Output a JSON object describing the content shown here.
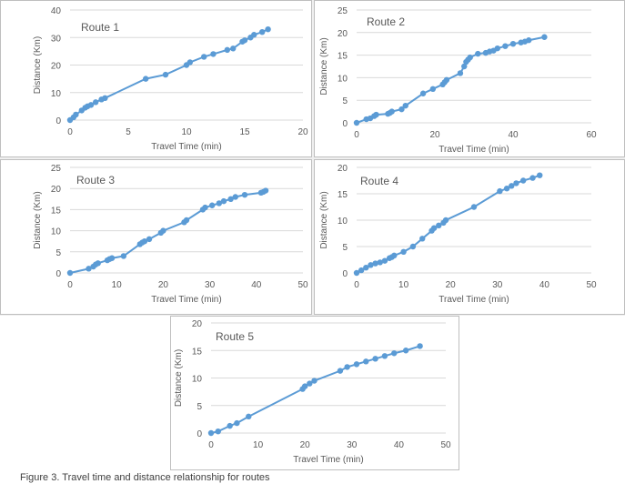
{
  "figure": {
    "caption": "Figure 3. Travel time and distance relationship for routes"
  },
  "style": {
    "series_color": "#5b9bd5",
    "grid_color": "#d9d9d9",
    "axis_text_color": "#595959"
  },
  "chart_data": [
    {
      "type": "line",
      "title": "Route 1",
      "xlabel": "Travel Time (min)",
      "ylabel": "Distance (Km)",
      "xlim": [
        0,
        20
      ],
      "ylim": [
        0,
        40
      ],
      "xticks": [
        0,
        5,
        10,
        15,
        20
      ],
      "yticks": [
        0,
        10,
        20,
        30,
        40
      ],
      "x": [
        0,
        0.3,
        0.5,
        1.0,
        1.3,
        1.5,
        1.8,
        2.2,
        2.7,
        3.0,
        6.5,
        8.2,
        10.0,
        10.3,
        11.5,
        12.3,
        13.5,
        14.0,
        14.8,
        15.0,
        15.5,
        15.8,
        16.5,
        17.0
      ],
      "y": [
        0,
        1.0,
        2.0,
        3.5,
        4.5,
        5.0,
        5.5,
        6.5,
        7.5,
        8.0,
        15.0,
        16.5,
        20.0,
        21.0,
        23.0,
        24.0,
        25.5,
        26.0,
        28.5,
        29.0,
        30.0,
        31.0,
        32.0,
        33.0
      ]
    },
    {
      "type": "line",
      "title": "Route 2",
      "xlabel": "Travel Time (min)",
      "ylabel": "Distance (Km)",
      "xlim": [
        0,
        60
      ],
      "ylim": [
        0,
        25
      ],
      "xticks": [
        0,
        20,
        40,
        60
      ],
      "yticks": [
        0,
        5,
        10,
        15,
        20,
        25
      ],
      "x": [
        0,
        2.5,
        3.5,
        4.5,
        5.0,
        8.0,
        8.5,
        9.0,
        11.5,
        12.5,
        17.0,
        19.5,
        22.0,
        22.5,
        23.0,
        26.5,
        27.5,
        28.0,
        28.5,
        29.0,
        31.0,
        33.0,
        34.0,
        35.0,
        36.0,
        38.0,
        40.0,
        42.0,
        43.0,
        44.0,
        48.0
      ],
      "y": [
        0,
        0.8,
        1.0,
        1.5,
        1.8,
        2.0,
        2.2,
        2.5,
        3.0,
        3.8,
        6.5,
        7.5,
        8.5,
        9.0,
        9.5,
        11.0,
        12.5,
        13.5,
        14.0,
        14.5,
        15.3,
        15.5,
        15.8,
        16.0,
        16.5,
        17.0,
        17.5,
        17.8,
        18.0,
        18.3,
        19.0
      ]
    },
    {
      "type": "line",
      "title": "Route 3",
      "xlabel": "Travel Time (min)",
      "ylabel": "Distance (Km)",
      "xlim": [
        0,
        50
      ],
      "ylim": [
        0,
        25
      ],
      "xticks": [
        0,
        10,
        20,
        30,
        40,
        50
      ],
      "yticks": [
        0,
        5,
        10,
        15,
        20,
        25
      ],
      "x": [
        0,
        4.0,
        5.0,
        5.5,
        6.0,
        8.0,
        8.5,
        9.0,
        11.5,
        15.0,
        15.5,
        16.0,
        17.0,
        19.5,
        20.0,
        24.5,
        25.0,
        28.5,
        29.0,
        30.5,
        32.0,
        33.0,
        34.5,
        35.5,
        37.5,
        41.0,
        41.5,
        42.0
      ],
      "y": [
        0,
        1.0,
        1.5,
        2.0,
        2.3,
        3.0,
        3.3,
        3.5,
        4.0,
        6.8,
        7.2,
        7.5,
        8.0,
        9.5,
        10.0,
        12.0,
        12.5,
        15.0,
        15.5,
        16.0,
        16.5,
        17.0,
        17.5,
        18.0,
        18.5,
        19.0,
        19.2,
        19.5
      ]
    },
    {
      "type": "line",
      "title": "Route 4",
      "xlabel": "Travel Time (min)",
      "ylabel": "Distance (Km)",
      "xlim": [
        0,
        50
      ],
      "ylim": [
        0,
        20
      ],
      "xticks": [
        0,
        10,
        20,
        30,
        40,
        50
      ],
      "yticks": [
        0,
        5,
        10,
        15,
        20
      ],
      "x": [
        0,
        1.0,
        2.0,
        3.0,
        4.0,
        5.0,
        6.0,
        7.0,
        7.5,
        8.0,
        10.0,
        12.0,
        14.0,
        16.0,
        16.5,
        17.5,
        18.5,
        19.0,
        25.0,
        30.5,
        32.0,
        33.0,
        34.0,
        35.5,
        37.5,
        39.0
      ],
      "y": [
        0,
        0.5,
        1.0,
        1.5,
        1.8,
        2.0,
        2.3,
        2.8,
        3.0,
        3.3,
        4.0,
        5.0,
        6.5,
        8.0,
        8.5,
        9.0,
        9.5,
        10.0,
        12.5,
        15.5,
        16.0,
        16.5,
        17.0,
        17.5,
        18.0,
        18.5
      ]
    },
    {
      "type": "line",
      "title": "Route 5",
      "xlabel": "Travel Time (min)",
      "ylabel": "Distance (Km)",
      "xlim": [
        0,
        50
      ],
      "ylim": [
        0,
        20
      ],
      "xticks": [
        0,
        10,
        20,
        30,
        40,
        50
      ],
      "yticks": [
        0,
        5,
        10,
        15,
        20
      ],
      "x": [
        0,
        1.5,
        4.0,
        5.5,
        8.0,
        19.5,
        20.0,
        21.0,
        22.0,
        27.5,
        29.0,
        31.0,
        33.0,
        35.0,
        37.0,
        39.0,
        41.5,
        44.5
      ],
      "y": [
        0,
        0.3,
        1.3,
        1.8,
        3.0,
        8.0,
        8.5,
        9.0,
        9.5,
        11.3,
        12.0,
        12.5,
        13.0,
        13.5,
        14.0,
        14.5,
        15.0,
        15.8
      ]
    }
  ]
}
